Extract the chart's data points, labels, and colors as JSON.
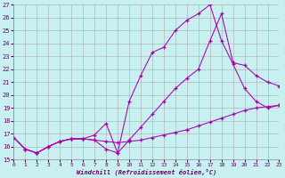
{
  "xlabel": "Windchill (Refroidissement éolien,°C)",
  "bg_color": "#c8f0f0",
  "grid_color": "#aaaaaa",
  "line_color": "#aa00aa",
  "xlim": [
    0,
    23
  ],
  "ylim": [
    15,
    27
  ],
  "xticks": [
    0,
    1,
    2,
    3,
    4,
    5,
    6,
    7,
    8,
    9,
    10,
    11,
    12,
    13,
    14,
    15,
    16,
    17,
    18,
    19,
    20,
    21,
    22,
    23
  ],
  "yticks": [
    15,
    16,
    17,
    18,
    19,
    20,
    21,
    22,
    23,
    24,
    25,
    26,
    27
  ],
  "lines": [
    {
      "x": [
        0,
        1,
        2,
        3,
        4,
        5,
        6,
        7,
        8,
        9,
        10,
        11,
        12,
        13,
        14,
        15,
        16,
        17,
        18,
        19,
        20,
        21,
        22,
        23
      ],
      "y": [
        16.7,
        15.8,
        15.5,
        16.0,
        16.4,
        16.6,
        16.6,
        16.5,
        16.4,
        16.3,
        16.4,
        16.5,
        16.7,
        16.9,
        17.1,
        17.3,
        17.6,
        17.9,
        18.2,
        18.5,
        18.8,
        19.0,
        19.1,
        19.2
      ]
    },
    {
      "x": [
        0,
        1,
        2,
        3,
        4,
        5,
        6,
        7,
        8,
        9,
        10,
        11,
        12,
        13,
        14,
        15,
        16,
        17,
        18,
        19,
        20,
        21,
        22,
        23
      ],
      "y": [
        16.7,
        15.8,
        15.5,
        16.0,
        16.4,
        16.6,
        16.6,
        16.5,
        15.8,
        15.5,
        19.5,
        21.5,
        23.3,
        23.7,
        25.0,
        25.8,
        26.3,
        27.0,
        24.2,
        22.4,
        20.5,
        19.5,
        19.0,
        19.2
      ]
    },
    {
      "x": [
        0,
        1,
        2,
        3,
        4,
        5,
        6,
        7,
        8,
        9,
        10,
        11,
        12,
        13,
        14,
        15,
        16,
        17,
        18,
        19,
        20,
        21,
        22,
        23
      ],
      "y": [
        16.7,
        15.8,
        15.5,
        16.0,
        16.4,
        16.6,
        16.6,
        16.9,
        17.8,
        15.5,
        16.5,
        17.5,
        18.5,
        19.5,
        20.5,
        21.3,
        22.0,
        24.2,
        26.3,
        22.5,
        22.3,
        21.5,
        21.0,
        20.7
      ]
    }
  ]
}
